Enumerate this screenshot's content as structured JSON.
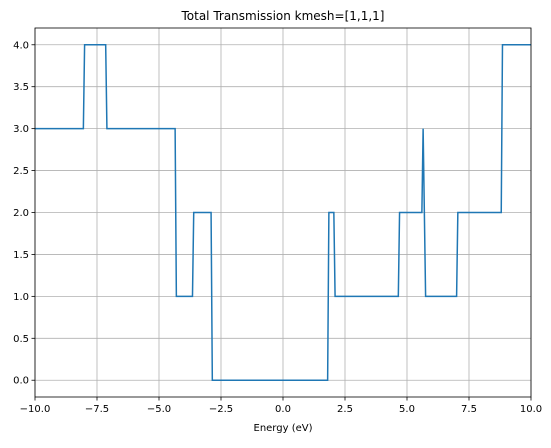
{
  "chart_data": {
    "type": "line",
    "title": "Total Transmission kmesh=[1,1,1]",
    "xlabel": "Energy (eV)",
    "ylabel": "",
    "xlim": [
      -10.0,
      10.0
    ],
    "ylim": [
      -0.2,
      4.2
    ],
    "grid": true,
    "x_ticks": [
      -10.0,
      -7.5,
      -5.0,
      -2.5,
      0.0,
      2.5,
      5.0,
      7.5,
      10.0
    ],
    "x_tick_labels": [
      "−10.0",
      "−7.5",
      "−5.0",
      "−2.5",
      "0.0",
      "2.5",
      "5.0",
      "7.5",
      "10.0"
    ],
    "y_ticks": [
      0.0,
      0.5,
      1.0,
      1.5,
      2.0,
      2.5,
      3.0,
      3.5,
      4.0
    ],
    "y_tick_labels": [
      "0.0",
      "0.5",
      "1.0",
      "1.5",
      "2.0",
      "2.5",
      "3.0",
      "3.5",
      "4.0"
    ],
    "series": [
      {
        "color": "#1f77b4",
        "x": [
          -10.0,
          -8.05,
          -8.0,
          -7.15,
          -7.1,
          -4.35,
          -4.3,
          -3.65,
          -3.6,
          -2.9,
          -2.85,
          1.8,
          1.85,
          2.05,
          2.1,
          4.65,
          4.7,
          5.6,
          5.65,
          5.7,
          5.75,
          7.0,
          7.05,
          8.8,
          8.85,
          10.0
        ],
        "y": [
          3.0,
          3.0,
          4.0,
          4.0,
          3.0,
          3.0,
          1.0,
          1.0,
          2.0,
          2.0,
          0.0,
          0.0,
          2.0,
          2.0,
          1.0,
          1.0,
          2.0,
          2.0,
          3.0,
          2.0,
          1.0,
          1.0,
          2.0,
          2.0,
          4.0,
          4.0
        ]
      }
    ]
  }
}
